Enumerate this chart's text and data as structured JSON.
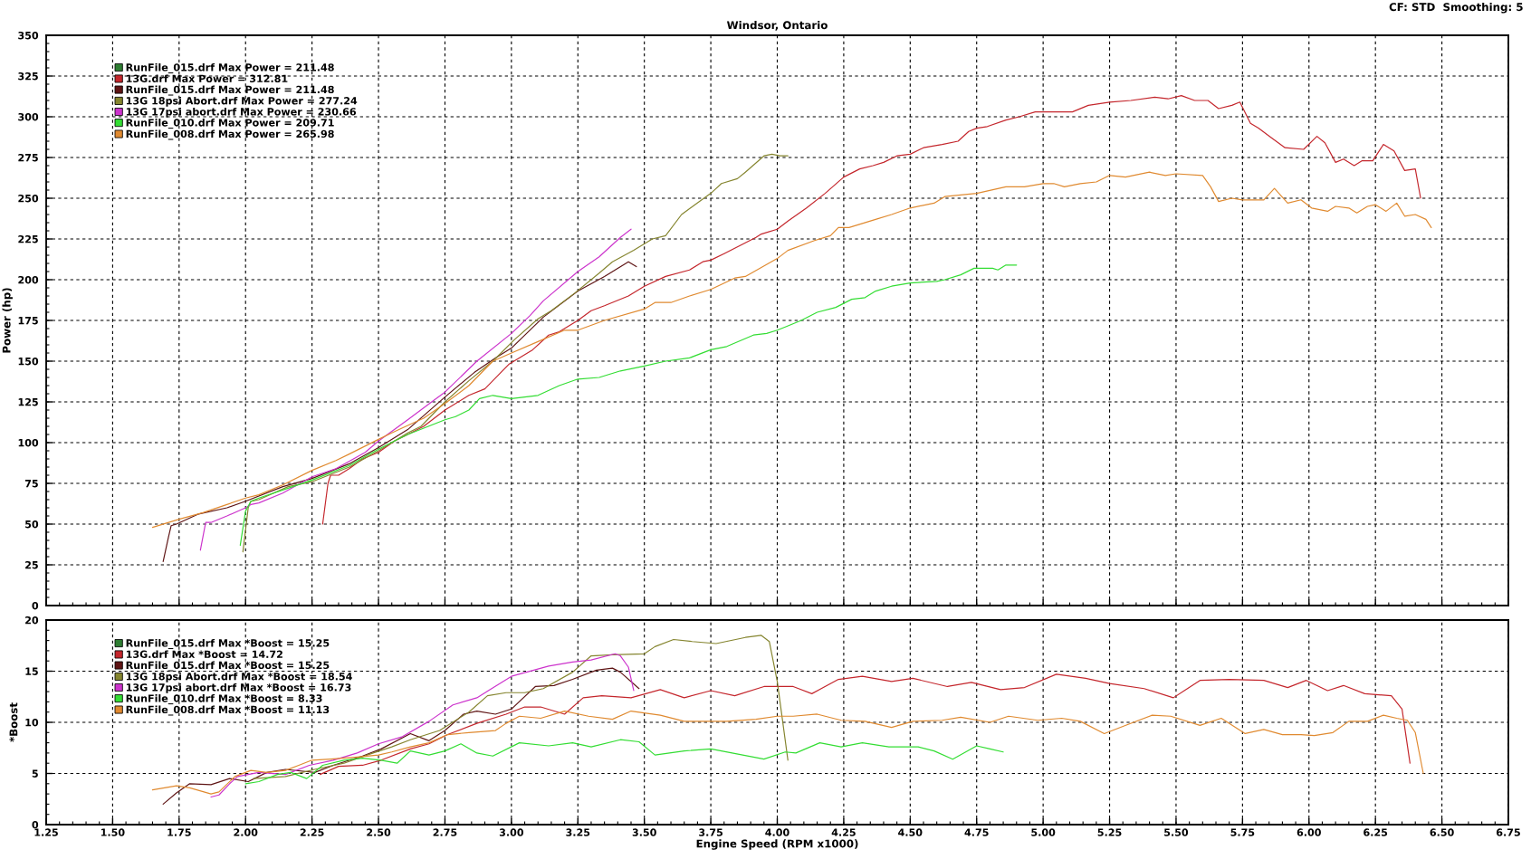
{
  "chart_data": [
    {
      "type": "line",
      "title": "Windsor, Ontario",
      "annotations": [
        "CF: STD  Smoothing: 5"
      ],
      "ylabel": "Power (hp)",
      "xlim": [
        1.25,
        6.75
      ],
      "xticks": [
        1.25,
        1.5,
        1.75,
        2,
        2.25,
        2.5,
        2.75,
        3,
        3.25,
        3.5,
        3.75,
        4,
        4.25,
        4.5,
        4.75,
        5,
        5.25,
        5.5,
        5.75,
        6,
        6.25,
        6.5,
        6.75
      ],
      "ylim": [
        0,
        350
      ],
      "yticks": [
        0,
        25,
        50,
        75,
        100,
        125,
        150,
        175,
        200,
        225,
        250,
        275,
        300,
        325,
        350
      ],
      "tick_labels": "y",
      "grid": true,
      "legend": "top left",
      "series": [
        {
          "name": "RunFile_015.drf Max Power = 211.48",
          "color": "#2e7d32"
        },
        {
          "name": "13G.drf Max Power = 312.81",
          "color": "#c4262c",
          "x": [
            2.29,
            2.31,
            2.32,
            2.35,
            2.39,
            2.44,
            2.5,
            2.56,
            2.61,
            2.67,
            2.75,
            2.84,
            2.9,
            2.99,
            3.08,
            3.14,
            3.18,
            3.25,
            3.3,
            3.35,
            3.44,
            3.5,
            3.58,
            3.67,
            3.72,
            3.75,
            3.8,
            3.86,
            3.92,
            3.94,
            4.0,
            4.04,
            4.11,
            4.18,
            4.25,
            4.31,
            4.36,
            4.4,
            4.45,
            4.5,
            4.55,
            4.62,
            4.68,
            4.72,
            4.75,
            4.79,
            4.86,
            4.91,
            4.97,
            5.04,
            5.11,
            5.17,
            5.25,
            5.33,
            5.42,
            5.47,
            5.52,
            5.57,
            5.62,
            5.66,
            5.71,
            5.74,
            5.78,
            5.81,
            5.86,
            5.91,
            5.98,
            6.03,
            6.06,
            6.1,
            6.13,
            6.17,
            6.2,
            6.24,
            6.28,
            6.32,
            6.36,
            6.4,
            6.42
          ],
          "values": [
            50,
            75,
            80,
            80,
            84,
            90,
            94,
            101,
            105,
            110,
            120,
            129,
            133,
            148,
            157,
            166,
            168,
            175,
            181,
            184,
            190,
            196,
            202,
            206,
            211,
            212,
            216,
            221,
            226,
            228,
            231,
            236,
            244,
            253,
            263,
            268,
            270,
            272,
            276,
            277,
            281,
            283,
            285,
            291,
            293,
            294,
            298,
            300,
            303,
            303,
            303,
            307,
            309,
            310,
            312,
            311,
            313,
            310,
            310,
            305,
            307,
            309,
            296,
            293,
            287,
            281,
            280,
            288,
            284,
            272,
            274,
            270,
            273,
            273,
            283,
            279,
            267,
            268,
            250
          ]
        },
        {
          "name": "RunFile_015.drf Max Power = 211.48",
          "color": "#5e1414",
          "x": [
            1.69,
            1.71,
            1.72,
            1.74,
            1.82,
            1.93,
            2.0,
            2.14,
            2.25,
            2.39,
            2.5,
            2.61,
            2.75,
            2.86,
            2.94,
            3.0,
            3.12,
            3.25,
            3.35,
            3.44,
            3.47
          ],
          "values": [
            27,
            42,
            49,
            50,
            56,
            60,
            64,
            73,
            78,
            87,
            97,
            108,
            128,
            143,
            152,
            158,
            177,
            193,
            202,
            211,
            208
          ]
        },
        {
          "name": "13G 18psi Abort.drf Max Power = 277.24",
          "color": "#85852f",
          "x": [
            1.99,
            2.01,
            2.02,
            2.05,
            2.16,
            2.25,
            2.39,
            2.5,
            2.61,
            2.66,
            2.75,
            2.84,
            2.93,
            3.01,
            3.1,
            3.15,
            3.24,
            3.33,
            3.38,
            3.46,
            3.53,
            3.58,
            3.64,
            3.69,
            3.75,
            3.79,
            3.85,
            3.88,
            3.95,
            3.98,
            4.01,
            4.04
          ],
          "values": [
            33,
            60,
            64,
            65,
            73,
            76,
            85,
            95,
            106,
            110,
            125,
            138,
            150,
            163,
            176,
            181,
            192,
            204,
            211,
            218,
            225,
            227,
            240,
            246,
            253,
            259,
            262,
            266,
            276,
            277,
            276,
            276
          ]
        },
        {
          "name": "13G 17psi abort.drf Max Power = 230.66",
          "color": "#cc33cc",
          "x": [
            1.83,
            1.85,
            1.87,
            1.93,
            2.0,
            2.02,
            2.05,
            2.14,
            2.25,
            2.34,
            2.45,
            2.5,
            2.61,
            2.7,
            2.75,
            2.87,
            3.0,
            3.07,
            3.12,
            3.25,
            3.33,
            3.41,
            3.45
          ],
          "values": [
            34,
            51,
            51,
            55,
            60,
            62,
            63,
            69,
            79,
            84,
            94,
            101,
            114,
            125,
            131,
            150,
            167,
            178,
            187,
            205,
            214,
            226,
            231
          ]
        },
        {
          "name": "RunFile_010.drf Max Power = 209.71",
          "color": "#33dd33",
          "x": [
            1.98,
            2.0,
            2.02,
            2.05,
            2.16,
            2.25,
            2.39,
            2.5,
            2.56,
            2.61,
            2.75,
            2.79,
            2.84,
            2.88,
            2.93,
            3.0,
            3.1,
            3.18,
            3.25,
            3.33,
            3.41,
            3.5,
            3.58,
            3.67,
            3.75,
            3.81,
            3.91,
            3.96,
            4.0,
            4.03,
            4.09,
            4.15,
            4.22,
            4.28,
            4.33,
            4.37,
            4.43,
            4.5,
            4.6,
            4.63,
            4.69,
            4.74,
            4.81,
            4.83,
            4.86,
            4.9
          ],
          "values": [
            37,
            58,
            64,
            66,
            72,
            77,
            86,
            96,
            101,
            105,
            114,
            116,
            120,
            127,
            129,
            127,
            129,
            135,
            139,
            140,
            144,
            147,
            150,
            152,
            157,
            159,
            166,
            167,
            169,
            171,
            175,
            180,
            183,
            188,
            189,
            193,
            196,
            198,
            199,
            200,
            203,
            207,
            207,
            206,
            209,
            209
          ]
        },
        {
          "name": "RunFile_008.drf Max Power = 265.98",
          "color": "#e08a30",
          "x": [
            1.65,
            1.75,
            1.84,
            1.93,
            2.0,
            2.05,
            2.14,
            2.25,
            2.34,
            2.39,
            2.5,
            2.55,
            2.59,
            2.67,
            2.75,
            2.84,
            2.93,
            3.0,
            3.1,
            3.2,
            3.25,
            3.35,
            3.5,
            3.54,
            3.6,
            3.67,
            3.75,
            3.84,
            3.88,
            4.0,
            4.04,
            4.14,
            4.2,
            4.23,
            4.27,
            4.37,
            4.43,
            4.5,
            4.59,
            4.63,
            4.69,
            4.75,
            4.86,
            4.93,
            5.0,
            5.04,
            5.08,
            5.14,
            5.2,
            5.25,
            5.31,
            5.4,
            5.46,
            5.5,
            5.6,
            5.63,
            5.66,
            5.71,
            5.75,
            5.83,
            5.87,
            5.92,
            5.97,
            6.01,
            6.07,
            6.1,
            6.15,
            6.18,
            6.22,
            6.25,
            6.29,
            6.33,
            6.36,
            6.4,
            6.44,
            6.46
          ],
          "values": [
            48,
            53,
            57,
            62,
            66,
            68,
            74,
            83,
            89,
            93,
            102,
            106,
            109,
            115,
            124,
            135,
            150,
            155,
            162,
            169,
            169,
            175,
            182,
            186,
            186,
            190,
            194,
            201,
            202,
            213,
            218,
            224,
            227,
            232,
            232,
            237,
            240,
            244,
            247,
            251,
            252,
            253,
            257,
            257,
            259,
            259,
            257,
            259,
            260,
            264,
            263,
            266,
            264,
            265,
            264,
            257,
            248,
            250,
            249,
            249,
            256,
            247,
            249,
            244,
            242,
            245,
            244,
            241,
            245,
            246,
            242,
            247,
            239,
            240,
            237,
            232
          ]
        }
      ]
    },
    {
      "type": "line",
      "xlabel": "Engine Speed (RPM x1000)",
      "ylabel": "*Boost",
      "xlim": [
        1.25,
        6.75
      ],
      "xticks": [
        1.25,
        {
          "value": 1.5,
          "label": "1.50"
        },
        1.75,
        {
          "value": 2,
          "label": "2.00"
        },
        2.25,
        {
          "value": 2.5,
          "label": "2.50"
        },
        2.75,
        {
          "value": 3,
          "label": "3.00"
        },
        3.25,
        {
          "value": 3.5,
          "label": "3.50"
        },
        3.75,
        {
          "value": 4,
          "label": "4.00"
        },
        4.25,
        {
          "value": 4.5,
          "label": "4.50"
        },
        4.75,
        {
          "value": 5,
          "label": "5.00"
        },
        5.25,
        {
          "value": 5.5,
          "label": "5.50"
        },
        5.75,
        {
          "value": 6,
          "label": "6.00"
        },
        6.25,
        {
          "value": 6.5,
          "label": "6.50"
        },
        6.75
      ],
      "ylim": [
        0,
        20
      ],
      "yticks": [
        0,
        5,
        10,
        15,
        20
      ],
      "grid": true,
      "legend": "top left",
      "series": [
        {
          "name": "RunFile_015.drf Max *Boost = 15.25",
          "color": "#2e7d32"
        },
        {
          "name": "13G.drf Max *Boost = 14.72",
          "color": "#c4262c",
          "x": [
            2.28,
            2.35,
            2.44,
            2.51,
            2.62,
            2.69,
            2.76,
            2.87,
            2.98,
            3.05,
            3.11,
            3.2,
            3.27,
            3.34,
            3.45,
            3.56,
            3.65,
            3.75,
            3.84,
            3.95,
            4.06,
            4.13,
            4.23,
            4.32,
            4.43,
            4.51,
            4.64,
            4.73,
            4.84,
            4.93,
            5.05,
            5.16,
            5.25,
            5.38,
            5.49,
            5.59,
            5.7,
            5.83,
            5.92,
            5.99,
            6.07,
            6.13,
            6.21,
            6.31,
            6.35,
            6.38
          ],
          "values": [
            4.9,
            5.7,
            5.8,
            6.3,
            7.4,
            7.9,
            8.8,
            9.9,
            10.8,
            11.5,
            11.5,
            10.8,
            12.4,
            12.6,
            12.4,
            13.2,
            12.4,
            13.1,
            12.6,
            13.5,
            13.5,
            12.8,
            14.2,
            14.5,
            14.0,
            14.3,
            13.5,
            13.9,
            13.2,
            13.4,
            14.7,
            14.3,
            13.8,
            13.3,
            12.4,
            14.1,
            14.2,
            14.1,
            13.4,
            14.1,
            13.1,
            13.6,
            12.8,
            12.6,
            11.3,
            6.0
          ]
        },
        {
          "name": "RunFile_015.drf Max *Boost = 15.25",
          "color": "#5e1414",
          "x": [
            1.69,
            1.74,
            1.79,
            1.87,
            1.94,
            2.01,
            2.08,
            2.15,
            2.26,
            2.33,
            2.44,
            2.51,
            2.62,
            2.69,
            2.75,
            2.82,
            2.87,
            2.94,
            3.0,
            3.09,
            3.16,
            3.23,
            3.32,
            3.38,
            3.41,
            3.48
          ],
          "values": [
            2.0,
            3.1,
            4.0,
            3.9,
            4.5,
            4.2,
            5.1,
            5.4,
            5.1,
            5.8,
            6.7,
            7.4,
            8.9,
            8.2,
            9.2,
            10.8,
            11.1,
            10.8,
            11.3,
            13.5,
            13.6,
            14.2,
            15.1,
            15.3,
            14.9,
            13.3
          ]
        },
        {
          "name": "13G 18psi Abort.drf Max *Boost = 18.54",
          "color": "#85852f",
          "x": [
            2.03,
            2.15,
            2.26,
            2.37,
            2.48,
            2.55,
            2.62,
            2.73,
            2.84,
            2.91,
            2.98,
            3.05,
            3.12,
            3.23,
            3.3,
            3.38,
            3.5,
            3.54,
            3.61,
            3.68,
            3.77,
            3.88,
            3.94,
            3.97,
            4.0,
            4.04
          ],
          "values": [
            4.5,
            4.7,
            5.4,
            6.0,
            7.0,
            7.6,
            8.3,
            9.2,
            11.0,
            12.6,
            12.9,
            12.9,
            13.3,
            14.9,
            16.5,
            16.6,
            16.7,
            17.4,
            18.1,
            17.9,
            17.7,
            18.3,
            18.5,
            17.9,
            14.0,
            6.3
          ]
        },
        {
          "name": "13G 17psi abort.drf Max *Boost = 16.73",
          "color": "#cc33cc",
          "x": [
            1.87,
            1.9,
            1.94,
            1.97,
            2.05,
            2.15,
            2.24,
            2.33,
            2.42,
            2.5,
            2.59,
            2.69,
            2.78,
            2.87,
            3.0,
            3.14,
            3.23,
            3.3,
            3.39,
            3.41,
            3.44,
            3.46
          ],
          "values": [
            2.7,
            2.9,
            4.0,
            4.7,
            5.1,
            4.9,
            5.8,
            6.3,
            7.0,
            7.9,
            8.6,
            10.1,
            11.7,
            12.4,
            14.5,
            15.5,
            15.9,
            16.1,
            16.7,
            16.5,
            15.4,
            13.1
          ]
        },
        {
          "name": "RunFile_010.drf Max *Boost = 8.33",
          "color": "#33dd33",
          "x": [
            2.0,
            2.05,
            2.12,
            2.17,
            2.23,
            2.29,
            2.37,
            2.44,
            2.51,
            2.57,
            2.62,
            2.69,
            2.75,
            2.81,
            2.87,
            2.93,
            3.03,
            3.14,
            3.23,
            3.3,
            3.41,
            3.48,
            3.54,
            3.65,
            3.75,
            3.83,
            3.95,
            4.03,
            4.07,
            4.16,
            4.24,
            4.32,
            4.42,
            4.53,
            4.59,
            4.66,
            4.75,
            4.8,
            4.85
          ],
          "values": [
            4.0,
            4.2,
            4.9,
            5.1,
            4.5,
            5.8,
            6.3,
            6.5,
            6.3,
            6.0,
            7.2,
            6.8,
            7.2,
            7.9,
            7.0,
            6.7,
            8.0,
            7.7,
            8.0,
            7.6,
            8.3,
            8.1,
            6.8,
            7.2,
            7.4,
            7.0,
            6.4,
            7.1,
            7.0,
            8.0,
            7.6,
            8.0,
            7.6,
            7.6,
            7.2,
            6.4,
            7.7,
            7.4,
            7.1
          ]
        },
        {
          "name": "RunFile_008.drf Max *Boost = 11.13",
          "color": "#e08a30",
          "x": [
            1.65,
            1.74,
            1.79,
            1.87,
            1.9,
            1.96,
            2.02,
            2.08,
            2.15,
            2.2,
            2.25,
            2.32,
            2.42,
            2.5,
            2.55,
            2.62,
            2.69,
            2.76,
            2.84,
            2.94,
            2.98,
            3.03,
            3.11,
            3.2,
            3.29,
            3.38,
            3.45,
            3.56,
            3.65,
            3.81,
            3.92,
            4.0,
            4.06,
            4.15,
            4.24,
            4.33,
            4.43,
            4.51,
            4.62,
            4.69,
            4.8,
            4.87,
            4.98,
            5.07,
            5.14,
            5.23,
            5.32,
            5.41,
            5.48,
            5.59,
            5.67,
            5.76,
            5.83,
            5.9,
            5.97,
            6.02,
            6.09,
            6.15,
            6.22,
            6.28,
            6.33,
            6.37,
            6.4,
            6.43
          ],
          "values": [
            3.4,
            3.8,
            3.6,
            3.0,
            3.2,
            4.7,
            5.3,
            5.1,
            5.3,
            5.8,
            6.3,
            6.4,
            6.6,
            6.8,
            7.1,
            7.6,
            8.0,
            8.8,
            9.0,
            9.2,
            9.9,
            10.6,
            10.4,
            11.1,
            10.6,
            10.3,
            11.1,
            10.7,
            10.1,
            10.1,
            10.3,
            10.6,
            10.6,
            10.8,
            10.2,
            10.1,
            9.5,
            10.1,
            10.2,
            10.5,
            10.0,
            10.6,
            10.2,
            10.4,
            10.1,
            8.9,
            9.8,
            10.7,
            10.6,
            9.7,
            10.4,
            8.9,
            9.3,
            8.8,
            8.8,
            8.7,
            9.0,
            10.1,
            10.1,
            10.7,
            10.4,
            10.2,
            9.0,
            5.0
          ]
        }
      ]
    }
  ]
}
